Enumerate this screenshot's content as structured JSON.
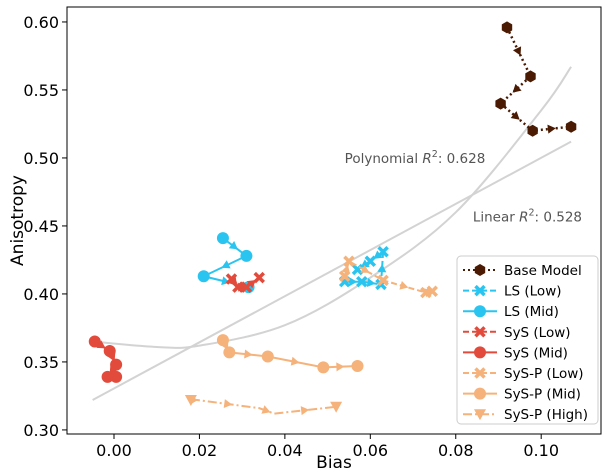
{
  "chart_data": {
    "type": "line",
    "xlabel": "Bias",
    "ylabel": "Anisotropy",
    "xlim": [
      -0.011,
      0.114
    ],
    "ylim": [
      0.297,
      0.611
    ],
    "xticks": [
      0.0,
      0.02,
      0.04,
      0.06,
      0.08,
      0.1
    ],
    "xtick_labels": [
      "0.00",
      "0.02",
      "0.04",
      "0.06",
      "0.08",
      "0.10"
    ],
    "yticks": [
      0.3,
      0.35,
      0.4,
      0.45,
      0.5,
      0.55,
      0.6
    ],
    "ytick_labels": [
      "0.30",
      "0.35",
      "0.40",
      "0.45",
      "0.50",
      "0.55",
      "0.60"
    ],
    "grid": false,
    "legend_position": "bottom-right",
    "fits": [
      {
        "name": "polynomial",
        "prefix": "Polynomial ",
        "r2_value": "0.628",
        "label_x": 0.054,
        "label_y": 0.5,
        "degree": 2,
        "points": [
          [
            -0.005,
            0.365
          ],
          [
            0.01,
            0.361
          ],
          [
            0.02,
            0.362
          ],
          [
            0.04,
            0.377
          ],
          [
            0.06,
            0.412
          ],
          [
            0.08,
            0.46
          ],
          [
            0.1,
            0.535
          ],
          [
            0.107,
            0.567
          ]
        ]
      },
      {
        "name": "linear",
        "prefix": "Linear ",
        "r2_value": "0.528",
        "label_x": 0.084,
        "label_y": 0.457,
        "degree": 1,
        "points": [
          [
            -0.005,
            0.322
          ],
          [
            0.107,
            0.512
          ]
        ]
      }
    ],
    "series": [
      {
        "name": "Base Model",
        "color": "#4a1a02",
        "linestyle": "dotted",
        "marker": "hexagon",
        "x": [
          0.092,
          0.0975,
          0.0905,
          0.098,
          0.107
        ],
        "y": [
          0.596,
          0.56,
          0.54,
          0.52,
          0.523
        ]
      },
      {
        "name": "LS (Low)",
        "color": "#29c5f0",
        "linestyle": "dashed",
        "marker": "x",
        "x": [
          0.054,
          0.058,
          0.0625,
          0.063,
          0.06,
          0.057
        ],
        "y": [
          0.409,
          0.409,
          0.407,
          0.431,
          0.424,
          0.418
        ]
      },
      {
        "name": "LS (Mid)",
        "color": "#29c5f0",
        "linestyle": "solid",
        "marker": "circle",
        "x": [
          0.0255,
          0.031,
          0.021,
          0.0315
        ],
        "y": [
          0.441,
          0.428,
          0.413,
          0.405
        ]
      },
      {
        "name": "SyS (Low)",
        "color": "#e24a3b",
        "linestyle": "dashed",
        "marker": "x",
        "x": [
          0.0275,
          0.029,
          0.031,
          0.034
        ],
        "y": [
          0.411,
          0.405,
          0.405,
          0.412
        ]
      },
      {
        "name": "SyS (Mid)",
        "color": "#e24a3b",
        "linestyle": "solid",
        "marker": "circle",
        "x": [
          -0.0045,
          -0.001,
          0.0005,
          -0.0015,
          0.0005
        ],
        "y": [
          0.365,
          0.358,
          0.348,
          0.339,
          0.339
        ]
      },
      {
        "name": "SyS-P (Low)",
        "color": "#f5b27a",
        "linestyle": "dashed",
        "marker": "x",
        "x": [
          0.054,
          0.055,
          0.063,
          0.073,
          0.0745
        ],
        "y": [
          0.413,
          0.424,
          0.41,
          0.401,
          0.402
        ]
      },
      {
        "name": "SyS-P (Mid)",
        "color": "#f5b27a",
        "linestyle": "solid",
        "marker": "circle",
        "x": [
          0.0255,
          0.027,
          0.036,
          0.049,
          0.057
        ],
        "y": [
          0.366,
          0.357,
          0.354,
          0.346,
          0.347
        ]
      },
      {
        "name": "SyS-P (High)",
        "color": "#f5b27a",
        "linestyle": "dashdot",
        "marker": "triangle-down",
        "x": [
          0.018,
          0.0195,
          0.034,
          0.0375,
          0.052
        ],
        "y": [
          0.322,
          0.322,
          0.316,
          0.312,
          0.317
        ]
      }
    ]
  }
}
